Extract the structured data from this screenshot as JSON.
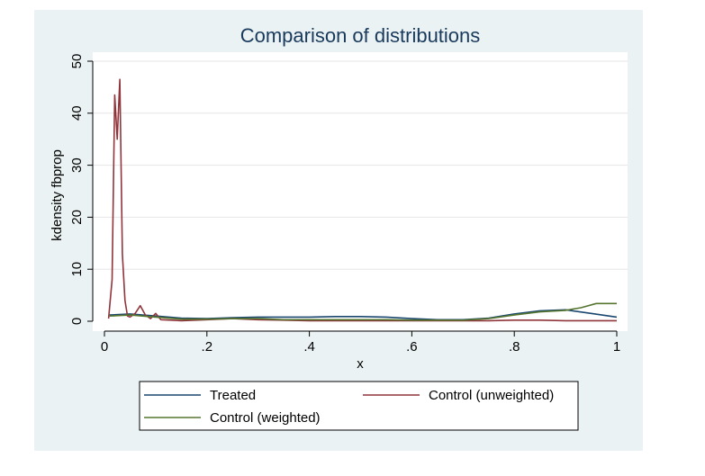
{
  "chart_data": {
    "type": "line",
    "title": "Comparison of distributions",
    "xlabel": "x",
    "ylabel": "kdensity fbprop",
    "xlim": [
      0,
      1
    ],
    "ylim": [
      0,
      50
    ],
    "xticks": [
      0,
      0.2,
      0.4,
      0.6,
      0.8,
      1
    ],
    "xtick_labels": [
      "0",
      ".2",
      ".4",
      ".6",
      ".8",
      "1"
    ],
    "yticks": [
      0,
      10,
      20,
      30,
      40,
      50
    ],
    "ytick_labels": [
      "0",
      "10",
      "20",
      "30",
      "40",
      "50"
    ],
    "grid": true,
    "legend_position": "bottom",
    "colors": {
      "plot_background": "#ffffff",
      "outer_background": "#eaf2f3",
      "title": "#1a3a5c"
    },
    "series": [
      {
        "name": "Treated",
        "color": "#1a476f",
        "x": [
          0.01,
          0.05,
          0.1,
          0.15,
          0.2,
          0.25,
          0.3,
          0.35,
          0.4,
          0.45,
          0.5,
          0.55,
          0.6,
          0.65,
          0.7,
          0.75,
          0.8,
          0.85,
          0.9,
          0.95,
          1.0
        ],
        "y": [
          1.2,
          1.4,
          1.0,
          0.6,
          0.5,
          0.7,
          0.8,
          0.8,
          0.8,
          0.9,
          0.9,
          0.8,
          0.5,
          0.3,
          0.3,
          0.6,
          1.4,
          2.0,
          2.2,
          1.5,
          0.8
        ]
      },
      {
        "name": "Control (unweighted)",
        "color": "#90353b",
        "x": [
          0.008,
          0.015,
          0.02,
          0.025,
          0.03,
          0.035,
          0.04,
          0.045,
          0.05,
          0.06,
          0.07,
          0.08,
          0.09,
          0.1,
          0.11,
          0.13,
          0.15,
          0.2,
          0.25,
          0.3,
          0.35,
          0.4,
          0.5,
          0.6,
          0.7,
          0.75,
          0.8,
          0.85,
          0.9,
          0.95,
          1.0
        ],
        "y": [
          0.5,
          8,
          43.5,
          35,
          46.5,
          13,
          4,
          1.0,
          0.8,
          1.5,
          3.0,
          1.2,
          0.5,
          1.5,
          0.3,
          0.2,
          0.1,
          0.3,
          0.5,
          0.3,
          0.2,
          0.1,
          0.1,
          0.1,
          0.1,
          0.1,
          0.2,
          0.2,
          0.1,
          0.1,
          0.1
        ]
      },
      {
        "name": "Control (weighted)",
        "color": "#55752f",
        "x": [
          0.01,
          0.05,
          0.1,
          0.15,
          0.2,
          0.25,
          0.3,
          0.35,
          0.4,
          0.45,
          0.5,
          0.55,
          0.6,
          0.65,
          0.7,
          0.75,
          0.8,
          0.85,
          0.9,
          0.93,
          0.96,
          1.0
        ],
        "y": [
          1.0,
          1.2,
          0.8,
          0.4,
          0.4,
          0.5,
          0.5,
          0.3,
          0.3,
          0.3,
          0.3,
          0.3,
          0.2,
          0.2,
          0.2,
          0.5,
          1.2,
          1.8,
          2.1,
          2.6,
          3.4,
          3.4
        ]
      }
    ]
  }
}
